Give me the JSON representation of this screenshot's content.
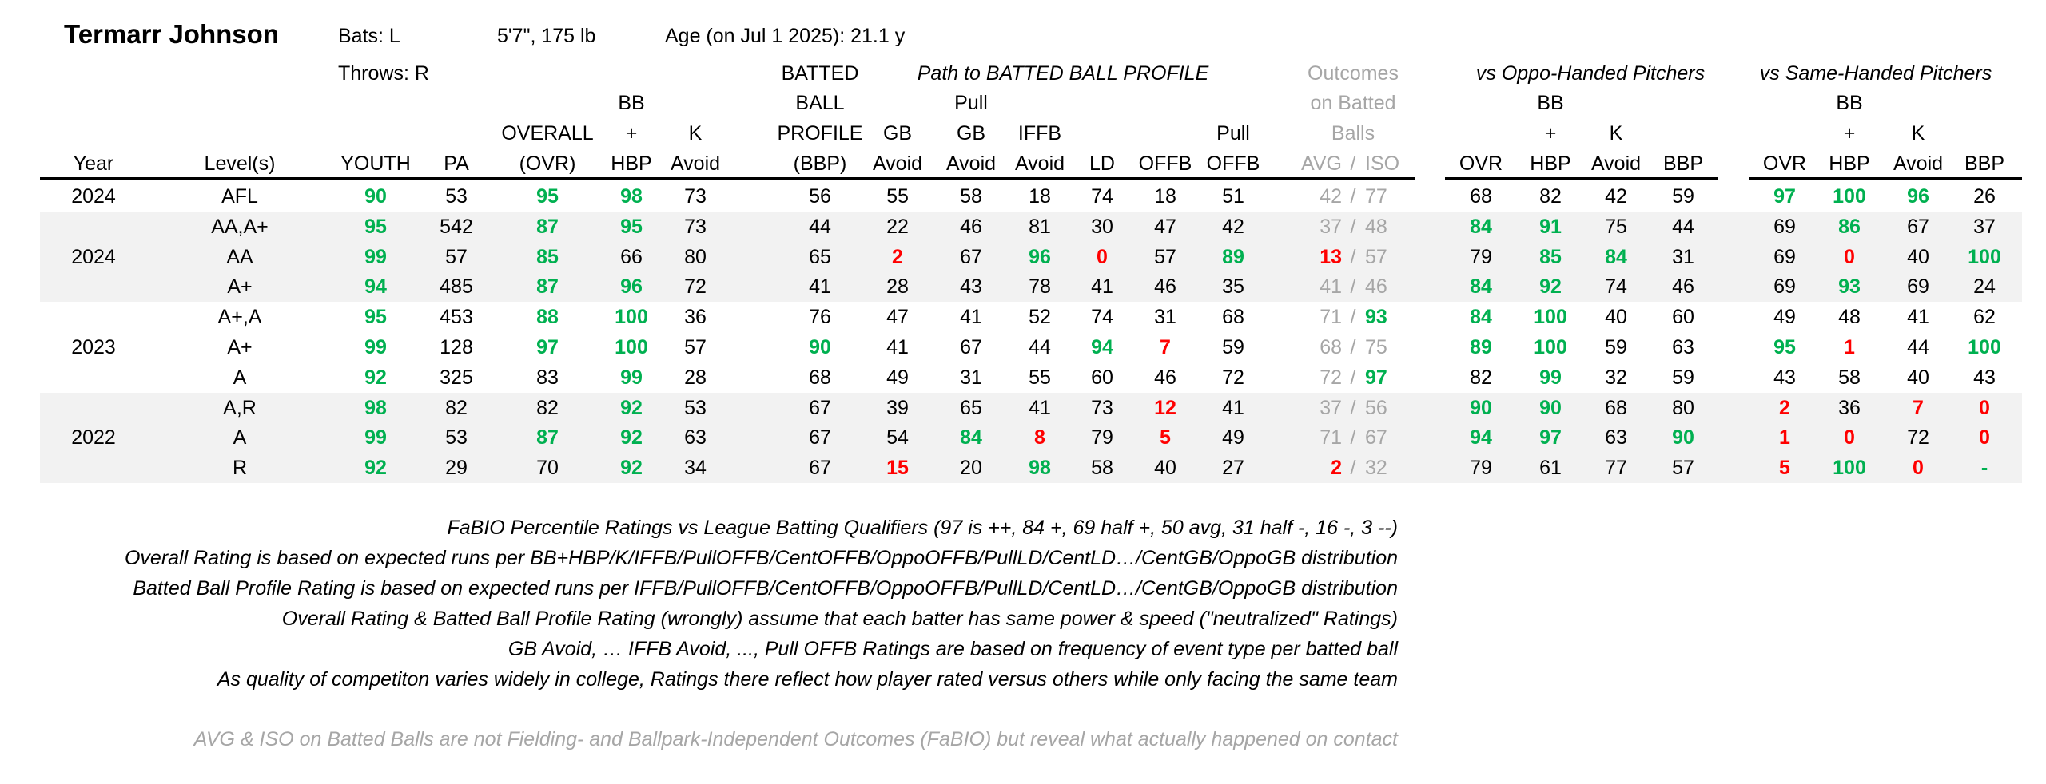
{
  "player": {
    "name": "Termarr Johnson",
    "bats": "Bats: L",
    "throws": "Throws: R",
    "size": "5'7\", 175 lb",
    "age": "Age (on Jul 1 2025): 21.1 y"
  },
  "groups": {
    "path": "Path to BATTED BALL PROFILE",
    "outcomes_1": "Outcomes",
    "outcomes_2": "on Batted",
    "outcomes_3": "Balls",
    "oppo": "vs Oppo-Handed Pitchers",
    "same": "vs Same-Handed Pitchers"
  },
  "headers": {
    "year": "Year",
    "level": "Level(s)",
    "youth": "YOUTH",
    "pa": "PA",
    "ovr_1": "OVERALL",
    "ovr_2": "(OVR)",
    "bb_1": "BB",
    "bb_2": "+",
    "bb_3": "HBP",
    "k_1": "K",
    "k_2": "Avoid",
    "bbp_1": "BATTED",
    "bbp_2": "BALL",
    "bbp_3": "PROFILE",
    "bbp_4": "(BBP)",
    "gb_1": "GB",
    "gb_2": "Avoid",
    "pgb_1": "Pull",
    "pgb_2": "GB",
    "pgb_3": "Avoid",
    "iffb_1": "IFFB",
    "iffb_2": "Avoid",
    "ld": "LD",
    "offb": "OFFB",
    "poffb_1": "Pull",
    "poffb_2": "OFFB",
    "avg": "AVG",
    "slash": "/",
    "iso": "ISO",
    "o_ovr": "OVR",
    "o_bb_1": "BB",
    "o_bb_2": "+",
    "o_bb_3": "HBP",
    "o_k_1": "K",
    "o_k_2": "Avoid",
    "o_bbp": "BBP",
    "s_ovr": "OVR",
    "s_bb_1": "BB",
    "s_bb_2": "+",
    "s_bb_3": "HBP",
    "s_k_1": "K",
    "s_k_2": "Avoid",
    "s_bbp": "BBP"
  },
  "year_labels": [
    {
      "text": "2024",
      "row": 0
    },
    {
      "text": "2024",
      "row": 2
    },
    {
      "text": "2023",
      "row": 5
    },
    {
      "text": "2022",
      "row": 8
    }
  ],
  "rows": [
    {
      "level": "AFL",
      "youth": "90",
      "pa": "53",
      "ovr": "95",
      "bb": "98",
      "k": "73",
      "bbp": "56",
      "gb": "55",
      "pgb": "58",
      "iffb": "18",
      "ld": "74",
      "offb": "18",
      "poffb": "51",
      "avg": "42",
      "iso": "77",
      "o_ovr": "68",
      "o_bb": "82",
      "o_k": "42",
      "o_bbp": "59",
      "s_ovr": "97",
      "s_bb": "100",
      "s_k": "96",
      "s_bbp": "26"
    },
    {
      "level": "AA,A+",
      "youth": "95",
      "pa": "542",
      "ovr": "87",
      "bb": "95",
      "k": "73",
      "bbp": "44",
      "gb": "22",
      "pgb": "46",
      "iffb": "81",
      "ld": "30",
      "offb": "47",
      "poffb": "42",
      "avg": "37",
      "iso": "48",
      "o_ovr": "84",
      "o_bb": "91",
      "o_k": "75",
      "o_bbp": "44",
      "s_ovr": "69",
      "s_bb": "86",
      "s_k": "67",
      "s_bbp": "37"
    },
    {
      "level": "AA",
      "youth": "99",
      "pa": "57",
      "ovr": "85",
      "bb": "66",
      "k": "80",
      "bbp": "65",
      "gb": "2",
      "pgb": "67",
      "iffb": "96",
      "ld": "0",
      "offb": "57",
      "poffb": "89",
      "avg": "13",
      "iso": "57",
      "o_ovr": "79",
      "o_bb": "85",
      "o_k": "84",
      "o_bbp": "31",
      "s_ovr": "69",
      "s_bb": "0",
      "s_k": "40",
      "s_bbp": "100"
    },
    {
      "level": "A+",
      "youth": "94",
      "pa": "485",
      "ovr": "87",
      "bb": "96",
      "k": "72",
      "bbp": "41",
      "gb": "28",
      "pgb": "43",
      "iffb": "78",
      "ld": "41",
      "offb": "46",
      "poffb": "35",
      "avg": "41",
      "iso": "46",
      "o_ovr": "84",
      "o_bb": "92",
      "o_k": "74",
      "o_bbp": "46",
      "s_ovr": "69",
      "s_bb": "93",
      "s_k": "69",
      "s_bbp": "24"
    },
    {
      "level": "A+,A",
      "youth": "95",
      "pa": "453",
      "ovr": "88",
      "bb": "100",
      "k": "36",
      "bbp": "76",
      "gb": "47",
      "pgb": "41",
      "iffb": "52",
      "ld": "74",
      "offb": "31",
      "poffb": "68",
      "avg": "71",
      "iso": "93",
      "o_ovr": "84",
      "o_bb": "100",
      "o_k": "40",
      "o_bbp": "60",
      "s_ovr": "49",
      "s_bb": "48",
      "s_k": "41",
      "s_bbp": "62"
    },
    {
      "level": "A+",
      "youth": "99",
      "pa": "128",
      "ovr": "97",
      "bb": "100",
      "k": "57",
      "bbp": "90",
      "gb": "41",
      "pgb": "67",
      "iffb": "44",
      "ld": "94",
      "offb": "7",
      "poffb": "59",
      "avg": "68",
      "iso": "75",
      "o_ovr": "89",
      "o_bb": "100",
      "o_k": "59",
      "o_bbp": "63",
      "s_ovr": "95",
      "s_bb": "1",
      "s_k": "44",
      "s_bbp": "100"
    },
    {
      "level": "A",
      "youth": "92",
      "pa": "325",
      "ovr": "83",
      "bb": "99",
      "k": "28",
      "bbp": "68",
      "gb": "49",
      "pgb": "31",
      "iffb": "55",
      "ld": "60",
      "offb": "46",
      "poffb": "72",
      "avg": "72",
      "iso": "97",
      "o_ovr": "82",
      "o_bb": "99",
      "o_k": "32",
      "o_bbp": "59",
      "s_ovr": "43",
      "s_bb": "58",
      "s_k": "40",
      "s_bbp": "43"
    },
    {
      "level": "A,R",
      "youth": "98",
      "pa": "82",
      "ovr": "82",
      "bb": "92",
      "k": "53",
      "bbp": "67",
      "gb": "39",
      "pgb": "65",
      "iffb": "41",
      "ld": "73",
      "offb": "12",
      "poffb": "41",
      "avg": "37",
      "iso": "56",
      "o_ovr": "90",
      "o_bb": "90",
      "o_k": "68",
      "o_bbp": "80",
      "s_ovr": "2",
      "s_bb": "36",
      "s_k": "7",
      "s_bbp": "0"
    },
    {
      "level": "A",
      "youth": "99",
      "pa": "53",
      "ovr": "87",
      "bb": "92",
      "k": "63",
      "bbp": "67",
      "gb": "54",
      "pgb": "84",
      "iffb": "8",
      "ld": "79",
      "offb": "5",
      "poffb": "49",
      "avg": "71",
      "iso": "67",
      "o_ovr": "94",
      "o_bb": "97",
      "o_k": "63",
      "o_bbp": "90",
      "s_ovr": "1",
      "s_bb": "0",
      "s_k": "72",
      "s_bbp": "0"
    },
    {
      "level": "R",
      "youth": "92",
      "pa": "29",
      "ovr": "70",
      "bb": "92",
      "k": "34",
      "bbp": "67",
      "gb": "15",
      "pgb": "20",
      "iffb": "98",
      "ld": "58",
      "offb": "40",
      "poffb": "27",
      "avg": "2",
      "iso": "32",
      "o_ovr": "79",
      "o_bb": "61",
      "o_k": "77",
      "o_bbp": "57",
      "s_ovr": "5",
      "s_bb": "100",
      "s_k": "0",
      "s_bbp": "-"
    }
  ],
  "notes": [
    "FaBIO Percentile Ratings vs League Batting Qualifiers (97 is ++, 84 +, 69 half +, 50 avg, 31 half -, 16 -, 3 --)",
    "Overall Rating is based on expected runs per BB+HBP/K/IFFB/PullOFFB/CentOFFB/OppoOFFB/PullLD/CentLD…/CentGB/OppoGB distribution",
    "Batted Ball Profile Rating is based on expected runs per IFFB/PullOFFB/CentOFFB/OppoOFFB/PullLD/CentLD…/CentGB/OppoGB distribution",
    "Overall Rating & Batted Ball Profile Rating (wrongly) assume that each batter has same power & speed (\"neutralized\" Ratings)",
    "GB Avoid, … IFFB Avoid, ..., Pull OFFB Ratings are based on frequency of event type per batted ball",
    "As quality of competiton varies widely in college, Ratings there reflect how player rated versus others while only facing the same team"
  ],
  "footnote": "AVG & ISO on Batted Balls are not Fielding- and Ballpark-Independent Outcomes (FaBIO) but reveal what actually happened on contact",
  "colors": {
    "good": "#00b050",
    "bad": "#ff0000",
    "muted": "#a6a6a6",
    "band": "#f2f2f2"
  }
}
